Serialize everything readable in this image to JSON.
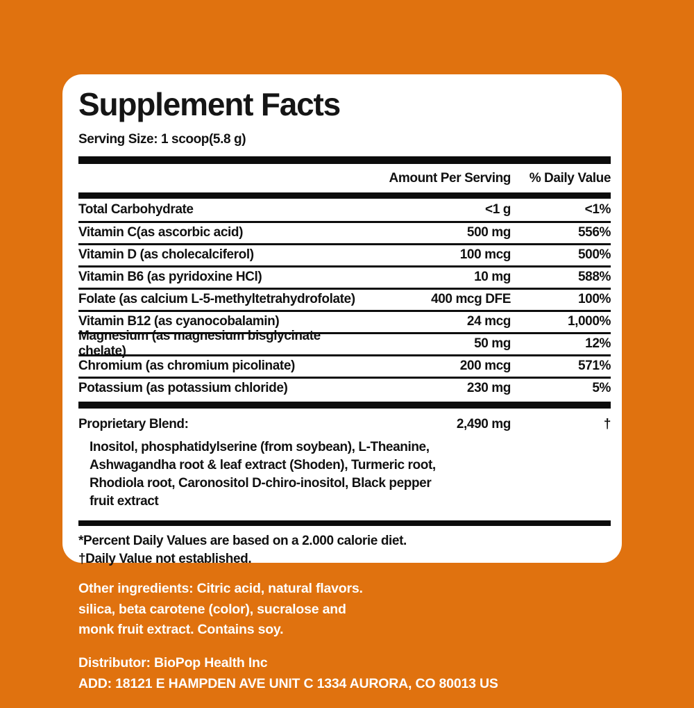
{
  "label": {
    "title": "Supplement Facts",
    "serving_size": "Serving Size: 1 scoop(5.8 g)"
  },
  "table": {
    "headers": {
      "amount": "Amount Per Serving",
      "daily_value": "% Daily Value"
    },
    "rows": [
      {
        "name": "Total Carbohydrate",
        "amount": "<1 g",
        "dv": "<1%"
      },
      {
        "name": "Vitamin C(as ascorbic acid)",
        "amount": "500 mg",
        "dv": "556%"
      },
      {
        "name": "Vitamin D (as cholecalciferol)",
        "amount": "100 mcg",
        "dv": "500%"
      },
      {
        "name": "Vitamin B6 (as pyridoxine HCl)",
        "amount": "10 mg",
        "dv": "588%"
      },
      {
        "name": "Folate (as calcium L-5-methyltetrahydrofolate)",
        "amount": "400 mcg DFE",
        "dv": "100%"
      },
      {
        "name": "Vitamin B12 (as cyanocobalamin)",
        "amount": "24 mcg",
        "dv": "1,000%"
      },
      {
        "name": "Magnesium (as magnesium bisglycinate chelate)",
        "amount": "50 mg",
        "dv": "12%"
      },
      {
        "name": "Chromium (as chromium picolinate)",
        "amount": "200 mcg",
        "dv": "571%"
      },
      {
        "name": "Potassium (as potassium chloride)",
        "amount": "230 mg",
        "dv": "5%"
      }
    ]
  },
  "blend": {
    "name": "Proprietary Blend:",
    "amount": "2,490 mg",
    "dv": "†",
    "lines": {
      "0": "Inositol, phosphatidylserine (from soybean), L-Theanine,",
      "1": "Ashwagandha root & leaf extract (Shoden), Turmeric root,",
      "2": "Rhodiola root, Caronositol D-chiro-inositol, Black pepper",
      "3": "fruit extract"
    }
  },
  "footnotes": {
    "0": "*Percent Daily Values are based on a 2.000 calorie diet.",
    "1": "†Daily Value not established."
  },
  "other_ingredients": {
    "0": "Other ingredients: Citric acid, natural flavors.",
    "1": "silica, beta carotene (color), sucralose and",
    "2": "monk fruit extract. Contains soy."
  },
  "distributor": {
    "name": "Distributor: BioPop Health Inc",
    "address": "ADD: 18121 E HAMPDEN AVE UNIT C 1334 AURORA, CO 80013 US"
  },
  "colors": {
    "background": "#E0720F",
    "card": "#FFFFFF",
    "rule": "#0c0c0c",
    "text": "#111111"
  }
}
